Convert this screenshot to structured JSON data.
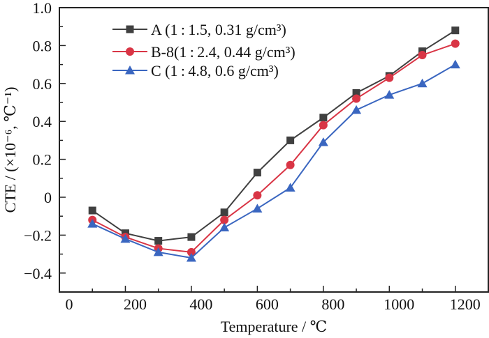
{
  "chart_data": {
    "type": "line",
    "title": "",
    "xlabel": "Temperature / ℃",
    "ylabel": "CTE / (×10⁻⁶, ℃⁻¹)",
    "xlim": [
      0,
      1300
    ],
    "ylim": [
      -0.5,
      1.0
    ],
    "x_ticks": [
      0,
      200,
      400,
      600,
      800,
      1000,
      1200
    ],
    "x_tick_labels": [
      "0",
      "200",
      "400",
      "600",
      "800",
      "1000",
      "1200"
    ],
    "x_minor_ticks": [
      100,
      300,
      500,
      700,
      900,
      1100
    ],
    "y_ticks": [
      -0.4,
      -0.2,
      0,
      0.2,
      0.4,
      0.6,
      0.8,
      1.0
    ],
    "y_tick_labels": [
      "−0.4",
      "−0.2",
      "0",
      "0.2",
      "0.4",
      "0.6",
      "0.8",
      "1.0"
    ],
    "y_minor_ticks": [
      -0.3,
      -0.1,
      0.1,
      0.3,
      0.5,
      0.7,
      0.9
    ],
    "grid": false,
    "legend_position": "top-left",
    "x": [
      100,
      200,
      300,
      400,
      500,
      600,
      700,
      800,
      900,
      1000,
      1100,
      1200
    ],
    "series": [
      {
        "name": "A (1 : 1.5, 0.31 g/cm³)",
        "marker": "square",
        "color": "#404040",
        "values": [
          -0.07,
          -0.19,
          -0.23,
          -0.21,
          -0.08,
          0.13,
          0.3,
          0.42,
          0.55,
          0.64,
          0.77,
          0.88
        ]
      },
      {
        "name": "B-8(1 : 2.4, 0.44 g/cm³)",
        "marker": "circle",
        "color": "#d93545",
        "values": [
          -0.12,
          -0.21,
          -0.27,
          -0.29,
          -0.12,
          0.01,
          0.17,
          0.38,
          0.52,
          0.63,
          0.75,
          0.81
        ]
      },
      {
        "name": "C (1 : 4.8, 0.6 g/cm³)",
        "marker": "triangle",
        "color": "#3a66c0",
        "values": [
          -0.14,
          -0.22,
          -0.29,
          -0.32,
          -0.16,
          -0.06,
          0.05,
          0.29,
          0.46,
          0.54,
          0.6,
          0.7
        ]
      }
    ]
  }
}
